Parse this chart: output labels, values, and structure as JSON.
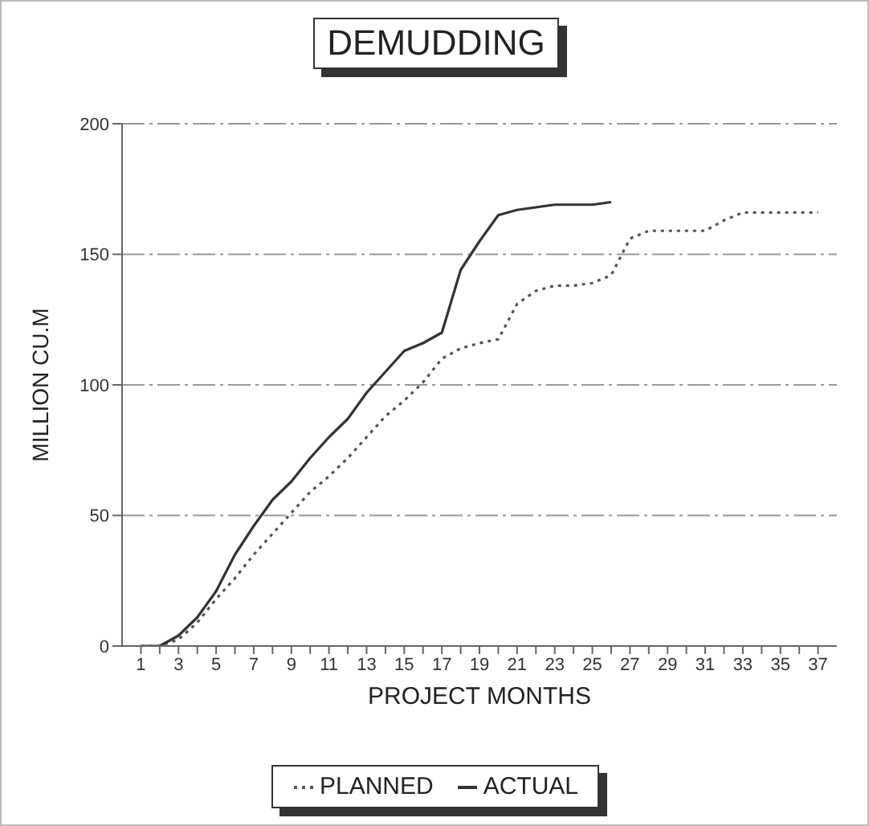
{
  "chart_data": {
    "type": "line",
    "title": "DEMUDDING",
    "xlabel": "PROJECT MONTHS",
    "ylabel": "MILLION CU.M",
    "x": [
      1,
      2,
      3,
      4,
      5,
      6,
      7,
      8,
      9,
      10,
      11,
      12,
      13,
      14,
      15,
      16,
      17,
      18,
      19,
      20,
      21,
      22,
      23,
      24,
      25,
      26,
      27,
      28,
      29,
      30,
      31,
      32,
      33,
      34,
      35,
      36,
      37
    ],
    "series": [
      {
        "name": "PLANNED",
        "color": "#555555",
        "line_style": "dotted",
        "values": [
          0,
          0,
          2.5,
          9,
          18,
          26,
          35,
          43,
          51,
          59,
          65,
          72,
          80,
          88,
          94,
          101,
          110,
          114,
          116,
          117.5,
          131,
          136,
          138,
          138,
          139,
          142,
          156,
          159,
          159,
          159,
          159,
          163,
          166,
          166,
          166,
          166,
          166
        ]
      },
      {
        "name": "ACTUAL",
        "color": "#333333",
        "line_style": "solid",
        "values": [
          0,
          0,
          4,
          11,
          21,
          35,
          46,
          56,
          63,
          72,
          80,
          87,
          97,
          105,
          113,
          116,
          120,
          144,
          155,
          165,
          167,
          168,
          169,
          169,
          169,
          170,
          null,
          null,
          null,
          null,
          null,
          null,
          null,
          null,
          null,
          null,
          null
        ]
      }
    ],
    "xlim": [
      0,
      38
    ],
    "xticks": [
      1,
      {
        "value": 2,
        "label": null
      },
      3,
      {
        "value": 4,
        "label": null
      },
      5,
      {
        "value": 6,
        "label": null
      },
      7,
      {
        "value": 8,
        "label": null
      },
      9,
      {
        "value": 10,
        "label": null
      },
      11,
      {
        "value": 12,
        "label": null
      },
      13,
      {
        "value": 14,
        "label": null
      },
      15,
      {
        "value": 16,
        "label": null
      },
      17,
      {
        "value": 18,
        "label": null
      },
      19,
      {
        "value": 20,
        "label": null
      },
      21,
      {
        "value": 22,
        "label": null
      },
      23,
      {
        "value": 24,
        "label": null
      },
      25,
      {
        "value": 26,
        "label": null
      },
      27,
      {
        "value": 28,
        "label": null
      },
      29,
      {
        "value": 30,
        "label": null
      },
      31,
      {
        "value": 32,
        "label": null
      },
      33,
      {
        "value": 34,
        "label": null
      },
      35,
      {
        "value": 36,
        "label": null
      },
      37
    ],
    "ylim": [
      0,
      200
    ],
    "yticks": [
      0,
      50,
      100,
      150,
      200
    ],
    "grid": "y",
    "legend": "bottom",
    "marker": "none"
  }
}
